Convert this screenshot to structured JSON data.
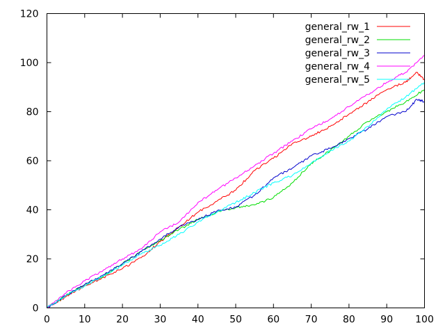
{
  "chart_data": {
    "type": "line",
    "title": "",
    "xlabel": "",
    "ylabel": "",
    "xlim": [
      0,
      100
    ],
    "ylim": [
      0,
      120
    ],
    "xticks": [
      0,
      10,
      20,
      30,
      40,
      50,
      60,
      70,
      80,
      90,
      100
    ],
    "yticks": [
      0,
      20,
      40,
      60,
      80,
      100,
      120
    ],
    "grid": false,
    "legend_position": "top-right",
    "series": [
      {
        "name": "general_rw_1",
        "color": "#ff0000",
        "x": [
          0,
          5,
          10,
          15,
          20,
          25,
          30,
          35,
          40,
          45,
          50,
          55,
          60,
          65,
          70,
          75,
          80,
          85,
          90,
          95,
          98,
          100
        ],
        "y": [
          0,
          4.5,
          9,
          12.5,
          16,
          20.5,
          27,
          33,
          39,
          43.5,
          48,
          56,
          61,
          67,
          70,
          74,
          79,
          84,
          89,
          92,
          96,
          93
        ]
      },
      {
        "name": "general_rw_2",
        "color": "#00dd00",
        "x": [
          0,
          5,
          10,
          15,
          20,
          25,
          30,
          35,
          40,
          45,
          50,
          55,
          60,
          65,
          70,
          75,
          80,
          85,
          90,
          95,
          100
        ],
        "y": [
          0,
          5,
          9.5,
          13,
          18,
          23,
          27.5,
          32,
          36,
          39,
          41,
          42,
          45,
          51,
          59,
          64,
          70,
          76,
          80,
          84,
          89
        ]
      },
      {
        "name": "general_rw_3",
        "color": "#0000cc",
        "x": [
          0,
          5,
          10,
          15,
          20,
          25,
          30,
          35,
          40,
          45,
          50,
          55,
          60,
          65,
          70,
          75,
          80,
          85,
          90,
          95,
          98,
          100
        ],
        "y": [
          0,
          5,
          9.5,
          13.5,
          18,
          23,
          28,
          33,
          36,
          39.5,
          41,
          46,
          53,
          57,
          62,
          65,
          69,
          73,
          78,
          80,
          85,
          84
        ]
      },
      {
        "name": "general_rw_4",
        "color": "#ff00ff",
        "x": [
          0,
          5,
          10,
          15,
          20,
          25,
          30,
          35,
          40,
          45,
          50,
          55,
          60,
          65,
          70,
          75,
          80,
          85,
          90,
          95,
          100
        ],
        "y": [
          0,
          6,
          11,
          15.5,
          20,
          24,
          31,
          35,
          43,
          48,
          53,
          58,
          63,
          68,
          73,
          77,
          82,
          87,
          92,
          96,
          103
        ]
      },
      {
        "name": "general_rw_5",
        "color": "#00ffff",
        "x": [
          0,
          5,
          10,
          15,
          20,
          25,
          30,
          35,
          40,
          45,
          50,
          55,
          60,
          65,
          70,
          75,
          80,
          85,
          90,
          95,
          100
        ],
        "y": [
          0,
          5,
          9,
          13,
          17.5,
          22,
          25.5,
          30,
          35,
          39,
          43,
          47,
          51,
          54,
          59,
          64,
          68,
          74,
          81,
          86,
          92
        ]
      }
    ]
  }
}
